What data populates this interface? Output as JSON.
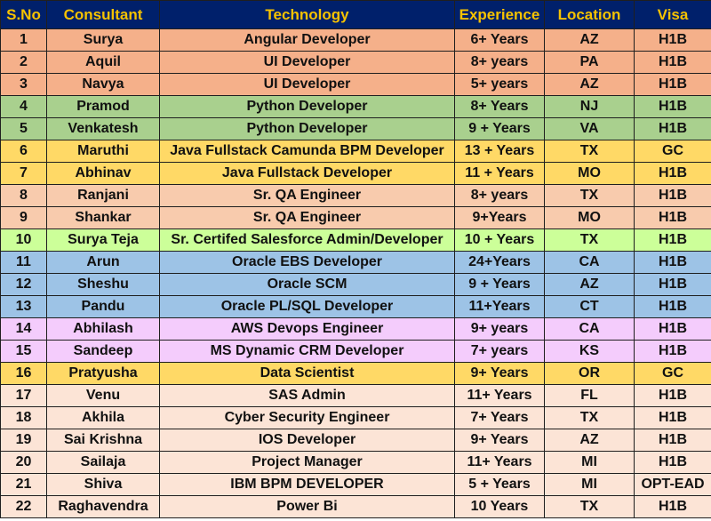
{
  "headers": [
    "S.No",
    "Consultant",
    "Technology",
    "Experience",
    "Location",
    "Visa"
  ],
  "colors": {
    "header_bg": "#00206b",
    "header_text": "#f6c200",
    "orange": "#f5b08a",
    "green": "#a9d08e",
    "yellow": "#ffd966",
    "peach": "#f8cbad",
    "lime": "#ccff99",
    "blue": "#9dc3e6",
    "pink": "#f4ccfc",
    "light_peach": "#fce4d6"
  },
  "rows": [
    {
      "sno": "1",
      "consultant": "Surya",
      "technology": "Angular Developer",
      "experience": "6+ Years",
      "location": "AZ",
      "visa": "H1B",
      "color": "orange"
    },
    {
      "sno": "2",
      "consultant": "Aquil",
      "technology": "UI Developer",
      "experience": "8+ years",
      "location": "PA",
      "visa": "H1B",
      "color": "orange"
    },
    {
      "sno": "3",
      "consultant": "Navya",
      "technology": "UI Developer",
      "experience": "5+ years",
      "location": "AZ",
      "visa": "H1B",
      "color": "orange"
    },
    {
      "sno": "4",
      "consultant": "Pramod",
      "technology": "Python Developer",
      "experience": "8+ Years",
      "location": "NJ",
      "visa": "H1B",
      "color": "green"
    },
    {
      "sno": "5",
      "consultant": "Venkatesh",
      "technology": "Python Developer",
      "experience": "9 + Years",
      "location": "VA",
      "visa": "H1B",
      "color": "green"
    },
    {
      "sno": "6",
      "consultant": "Maruthi",
      "technology": "Java Fullstack Camunda BPM Developer",
      "experience": "13 + Years",
      "location": "TX",
      "visa": "GC",
      "color": "yellow"
    },
    {
      "sno": "7",
      "consultant": "Abhinav",
      "technology": "Java Fullstack Developer",
      "experience": "11 + Years",
      "location": "MO",
      "visa": "H1B",
      "color": "yellow"
    },
    {
      "sno": "8",
      "consultant": "Ranjani",
      "technology": "Sr. QA Engineer",
      "experience": "8+ years",
      "location": "TX",
      "visa": "H1B",
      "color": "peach"
    },
    {
      "sno": "9",
      "consultant": "Shankar",
      "technology": "Sr. QA Engineer",
      "experience": "9+Years",
      "location": "MO",
      "visa": "H1B",
      "color": "peach"
    },
    {
      "sno": "10",
      "consultant": "Surya Teja",
      "technology": "Sr. Certifed Salesforce Admin/Developer",
      "experience": "10 + Years",
      "location": "TX",
      "visa": "H1B",
      "color": "lime"
    },
    {
      "sno": "11",
      "consultant": "Arun",
      "technology": "Oracle EBS Developer",
      "experience": "24+Years",
      "location": "CA",
      "visa": "H1B",
      "color": "blue"
    },
    {
      "sno": "12",
      "consultant": "Sheshu",
      "technology": "Oracle SCM",
      "experience": "9 + Years",
      "location": "AZ",
      "visa": "H1B",
      "color": "blue"
    },
    {
      "sno": "13",
      "consultant": "Pandu",
      "technology": "Oracle PL/SQL Developer",
      "experience": "11+Years",
      "location": "CT",
      "visa": "H1B",
      "color": "blue"
    },
    {
      "sno": "14",
      "consultant": "Abhilash",
      "technology": "AWS Devops Engineer",
      "experience": "9+ years",
      "location": "CA",
      "visa": "H1B",
      "color": "pink"
    },
    {
      "sno": "15",
      "consultant": "Sandeep",
      "technology": "MS Dynamic CRM Developer",
      "experience": "7+ years",
      "location": "KS",
      "visa": "H1B",
      "color": "pink"
    },
    {
      "sno": "16",
      "consultant": "Pratyusha",
      "technology": "Data Scientist",
      "experience": "9+ Years",
      "location": "OR",
      "visa": "GC",
      "color": "yellow"
    },
    {
      "sno": "17",
      "consultant": "Venu",
      "technology": "SAS Admin",
      "experience": "11+ Years",
      "location": "FL",
      "visa": "H1B",
      "color": "light_peach"
    },
    {
      "sno": "18",
      "consultant": "Akhila",
      "technology": "Cyber Security Engineer",
      "experience": "7+ Years",
      "location": "TX",
      "visa": "H1B",
      "color": "light_peach"
    },
    {
      "sno": "19",
      "consultant": "Sai Krishna",
      "technology": "IOS Developer",
      "experience": "9+ Years",
      "location": "AZ",
      "visa": "H1B",
      "color": "light_peach"
    },
    {
      "sno": "20",
      "consultant": "Sailaja",
      "technology": "Project Manager",
      "experience": "11+ Years",
      "location": "MI",
      "visa": "H1B",
      "color": "light_peach"
    },
    {
      "sno": "21",
      "consultant": "Shiva",
      "technology": "IBM BPM DEVELOPER",
      "experience": "5 + Years",
      "location": "MI",
      "visa": "OPT-EAD",
      "color": "light_peach"
    },
    {
      "sno": "22",
      "consultant": "Raghavendra",
      "technology": "Power Bi",
      "experience": "10 Years",
      "location": "TX",
      "visa": "H1B",
      "color": "light_peach"
    }
  ]
}
